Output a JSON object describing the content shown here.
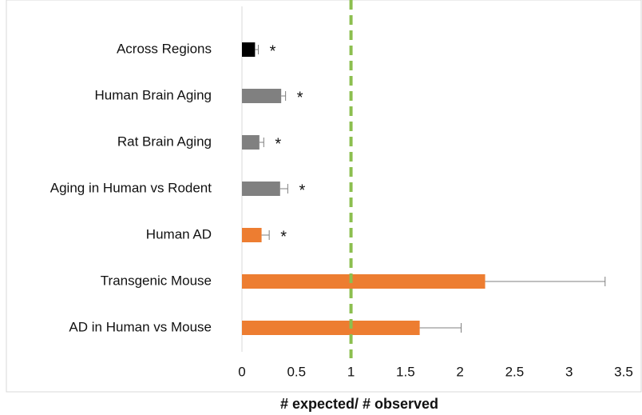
{
  "chart_data": {
    "type": "hbar",
    "x_label": "# expected/ # observed",
    "categories": [
      "Across Regions",
      "Human Brain Aging",
      "Rat Brain Aging",
      "Aging in Human vs Rodent",
      "Human AD",
      "Transgenic Mouse",
      "AD in Human vs Mouse"
    ],
    "values": [
      0.12,
      0.36,
      0.16,
      0.35,
      0.18,
      2.23,
      1.63
    ],
    "errors": [
      0.03,
      0.04,
      0.04,
      0.07,
      0.07,
      1.1,
      0.38
    ],
    "colors": [
      "#000000",
      "#808080",
      "#808080",
      "#808080",
      "#ed7d31",
      "#ed7d31",
      "#ed7d31"
    ],
    "significance": [
      "*",
      "*",
      "*",
      "*",
      "*",
      null,
      null
    ],
    "xlim": [
      0,
      3.5
    ],
    "xticks": [
      0,
      0.5,
      1,
      1.5,
      2,
      2.5,
      3,
      3.5
    ],
    "reference_line": {
      "value": 1,
      "color": "#8cbf4f"
    }
  }
}
